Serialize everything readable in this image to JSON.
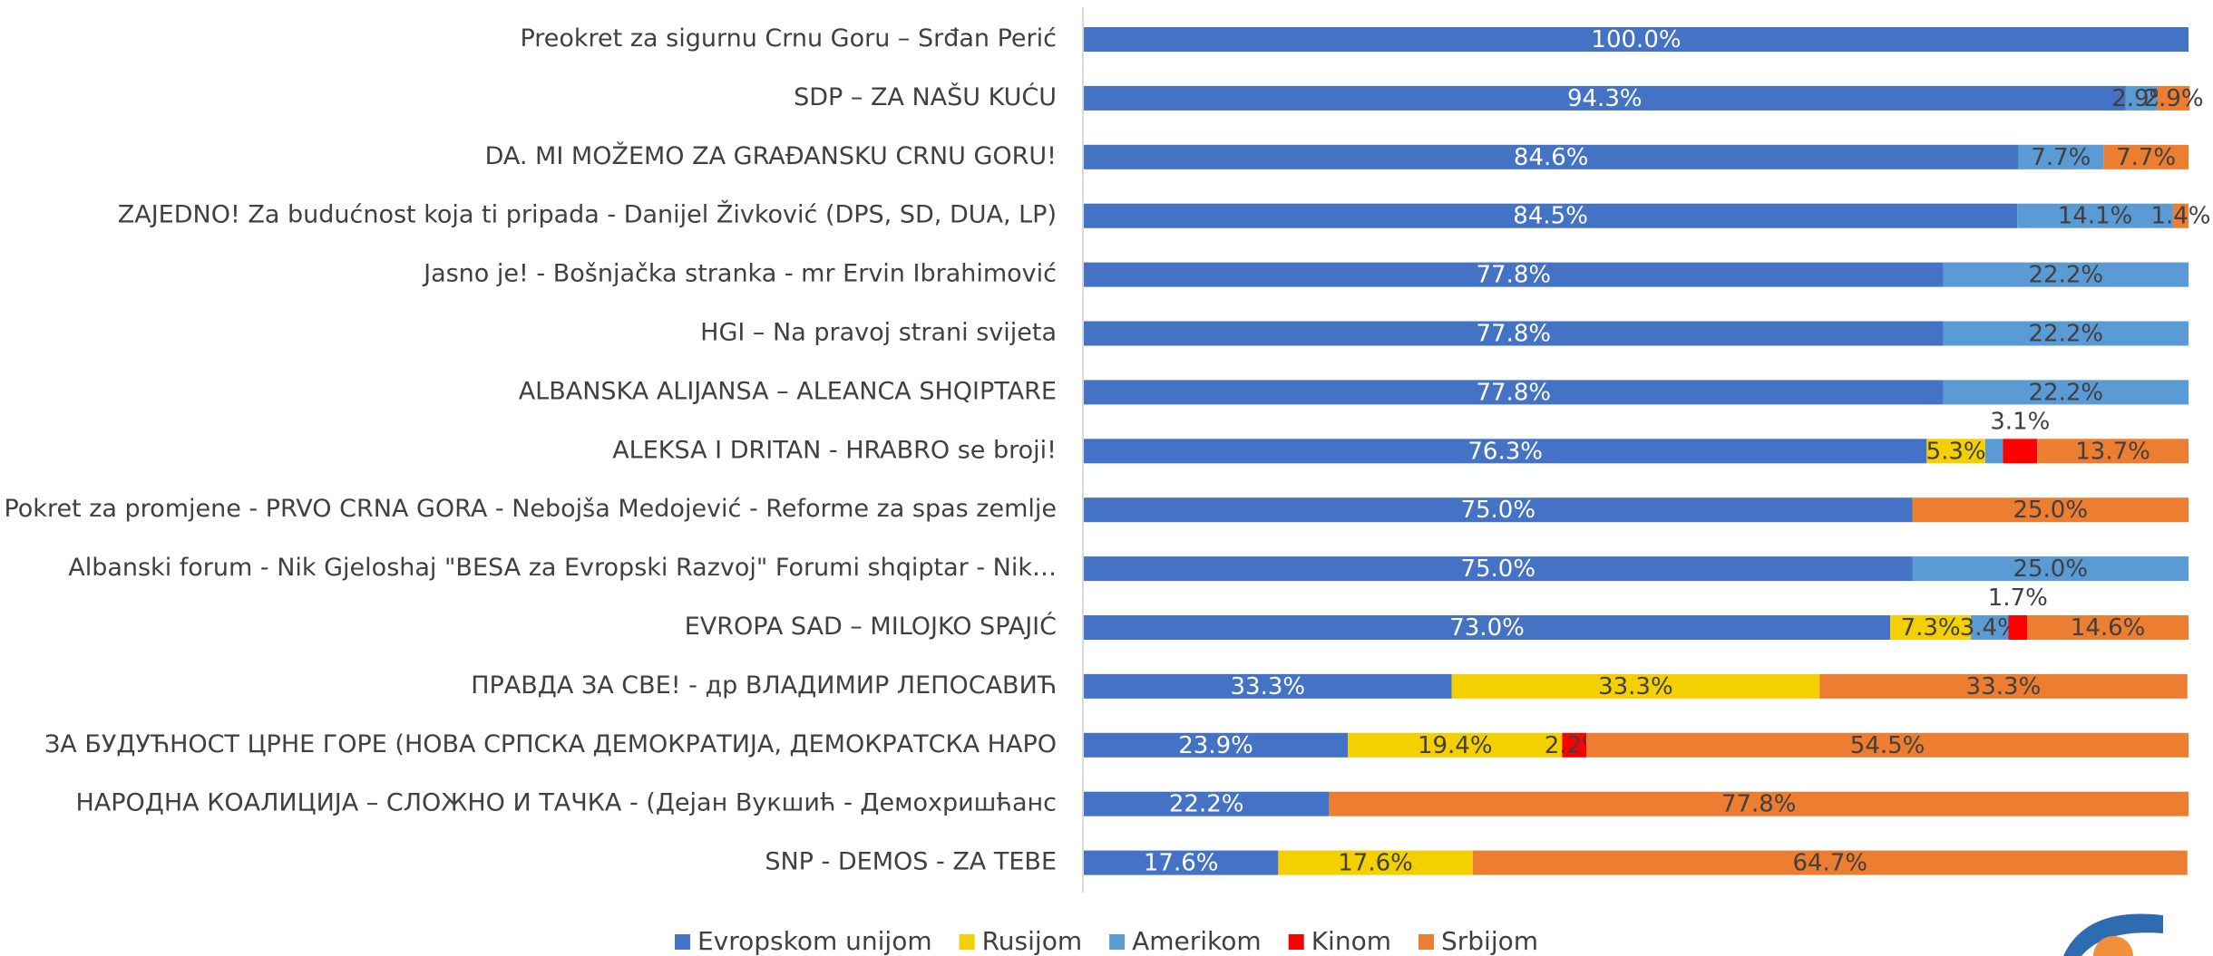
{
  "chart_data": {
    "type": "stacked_bar_horizontal_100",
    "categories": [
      "Preokret za sigurnu Crnu Goru – Srđan Perić",
      "SDP – ZA NAŠU KUĆU",
      "DA. MI MOŽEMO ZA GRAĐANSKU CRNU GORU!",
      "ZAJEDNO! Za budućnost koja ti pripada - Danijel Živković (DPS, SD, DUA, LP)",
      "Jasno je! - Bošnjačka stranka - mr Ervin Ibrahimović",
      "HGI – Na pravoj strani svijeta",
      "ALBANSKA ALIJANSA – ALEANCA SHQIPTARE",
      "ALEKSA I DRITAN - HRABRO se broji!",
      "Pokret za promjene - PRVO CRNA GORA - Nebojša Medojević - Reforme za spas zemlje",
      "Albanski forum - Nik Gjeloshaj \"BESA za Evropski Razvoj\" Forumi shqiptar - Nik…",
      "EVROPA SAD – MILOJKO SPAJIĆ",
      "ПРАВДА ЗА СВЕ! - др ВЛАДИМИР ЛЕПОСАВИЋ",
      "ЗА БУДУЋНОСТ ЦРНЕ ГОРЕ (НОВА СРПСКА ДЕМОКРАТИЈА, ДЕМОКРАТСКА НАРО",
      "НАРОДНА КОАЛИЦИЈА – СЛОЖНО И ТАЧКА - (Дејан Вукшић - Демохришћанс",
      "SNP - DEMOS - ZA TEBE"
    ],
    "series": [
      {
        "name": "Evropskom unijom",
        "color": "#4472c4",
        "values": [
          100,
          94.3,
          84.6,
          84.5,
          77.8,
          77.8,
          77.8,
          76.3,
          75.0,
          75.0,
          73.0,
          33.3,
          23.9,
          22.2,
          17.6
        ],
        "value_labels": [
          "100.0%",
          "94.3%",
          "84.6%",
          "84.5%",
          "77.8%",
          "77.8%",
          "77.8%",
          "76.3%",
          "75.0%",
          "75.0%",
          "73.0%",
          "33.3%",
          "23.9%",
          "22.2%",
          "17.6%"
        ]
      },
      {
        "name": "Rusijom",
        "color": "#f5d000",
        "values": [
          null,
          null,
          null,
          null,
          null,
          null,
          null,
          5.3,
          null,
          null,
          7.3,
          33.3,
          19.4,
          null,
          17.6
        ],
        "value_labels": [
          null,
          null,
          null,
          null,
          null,
          null,
          null,
          "5.3%",
          null,
          null,
          "7.3%",
          "33.3%",
          "19.4%",
          null,
          "17.6%"
        ]
      },
      {
        "name": "Amerikom",
        "color": "#5b9bd5",
        "values": [
          null,
          2.9,
          7.7,
          14.1,
          22.2,
          22.2,
          22.2,
          1.6,
          null,
          25.0,
          3.4,
          null,
          null,
          null,
          null
        ],
        "value_labels": [
          null,
          "2.9%",
          "7.7%",
          "14.1%",
          "22.2%",
          "22.2%",
          "22.2%",
          null,
          null,
          "25.0%",
          "3.4%",
          null,
          null,
          null,
          null
        ]
      },
      {
        "name": "Kinom",
        "color": "#ff0000",
        "values": [
          null,
          null,
          null,
          null,
          null,
          null,
          null,
          3.1,
          null,
          null,
          1.7,
          null,
          2.2,
          null,
          null
        ],
        "value_labels": [
          null,
          null,
          null,
          null,
          null,
          null,
          null,
          "3.1%",
          null,
          null,
          "1.7%",
          null,
          "2.2%",
          null,
          null
        ]
      },
      {
        "name": "Srbijom",
        "color": "#ed7d31",
        "values": [
          null,
          2.9,
          7.7,
          1.4,
          null,
          null,
          null,
          13.7,
          25.0,
          null,
          14.6,
          33.3,
          54.5,
          77.8,
          64.7
        ],
        "value_labels": [
          null,
          "2.9%",
          "7.7%",
          "1.4%",
          null,
          null,
          null,
          "13.7%",
          "25.0%",
          null,
          "14.6%",
          "33.3%",
          "54.5%",
          "77.8%",
          "64.7%"
        ]
      }
    ],
    "xlim": [
      0,
      100
    ],
    "legend": "bottom"
  }
}
